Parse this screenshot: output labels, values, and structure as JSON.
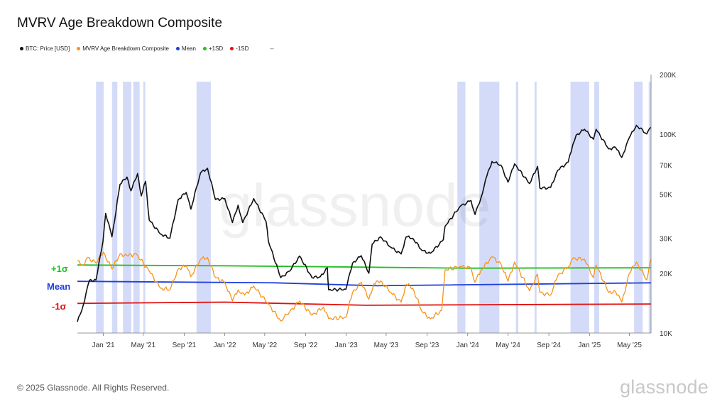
{
  "title": "MVRV Age Breakdown Composite",
  "legend": [
    {
      "label": "BTC: Price [USD]",
      "color": "#111111"
    },
    {
      "label": "MVRV Age Breakdown Composite",
      "color": "#f7931a"
    },
    {
      "label": "Mean",
      "color": "#1f3fe0"
    },
    {
      "label": "+1SD",
      "color": "#20c020"
    },
    {
      "label": "-1SD",
      "color": "#e01010"
    },
    {
      "label": "--",
      "color": ""
    }
  ],
  "band_labels": {
    "plus": "+1σ",
    "mean": "Mean",
    "minus": "-1σ"
  },
  "footer": {
    "copyright": "© 2025 Glassnode. All Rights Reserved.",
    "brand": "glassnode",
    "watermark": "glassnode"
  },
  "chart_data": {
    "type": "line",
    "x_ticks": [
      "Jan '21",
      "May '21",
      "Sep '21",
      "Jan '22",
      "May '22",
      "Sep '22",
      "Jan '23",
      "May '23",
      "Sep '23",
      "Jan '24",
      "May '24",
      "Sep '24",
      "Jan '25",
      "May '25"
    ],
    "y_ticks": [
      "200K",
      "100K",
      "70K",
      "50K",
      "30K",
      "20K",
      "10K"
    ],
    "y_scale": "log",
    "ylim": [
      10000,
      200000
    ],
    "xlim": [
      "2020-10-15",
      "2025-07-05"
    ],
    "series": [
      {
        "name": "BTC: Price [USD]",
        "color": "#111111",
        "points": [
          [
            "2020-10-15",
            11400
          ],
          [
            "2020-11-01",
            13700
          ],
          [
            "2020-11-20",
            18400
          ],
          [
            "2020-12-10",
            18500
          ],
          [
            "2020-12-31",
            29000
          ],
          [
            "2021-01-08",
            40000
          ],
          [
            "2021-01-27",
            30500
          ],
          [
            "2021-02-20",
            56000
          ],
          [
            "2021-03-13",
            61000
          ],
          [
            "2021-03-25",
            52000
          ],
          [
            "2021-04-14",
            63500
          ],
          [
            "2021-04-25",
            49000
          ],
          [
            "2021-05-08",
            58000
          ],
          [
            "2021-05-19",
            37000
          ],
          [
            "2021-06-22",
            31500
          ],
          [
            "2021-07-20",
            30000
          ],
          [
            "2021-08-14",
            47000
          ],
          [
            "2021-09-07",
            51000
          ],
          [
            "2021-09-21",
            42000
          ],
          [
            "2021-10-20",
            64000
          ],
          [
            "2021-11-10",
            67500
          ],
          [
            "2021-12-04",
            47000
          ],
          [
            "2022-01-01",
            47500
          ],
          [
            "2022-01-24",
            36000
          ],
          [
            "2022-02-10",
            44000
          ],
          [
            "2022-02-24",
            36000
          ],
          [
            "2022-03-29",
            47500
          ],
          [
            "2022-05-05",
            36500
          ],
          [
            "2022-05-12",
            29000
          ],
          [
            "2022-06-18",
            19000
          ],
          [
            "2022-07-15",
            20500
          ],
          [
            "2022-08-14",
            24400
          ],
          [
            "2022-09-20",
            19000
          ],
          [
            "2022-10-15",
            19200
          ],
          [
            "2022-11-05",
            21300
          ],
          [
            "2022-11-09",
            16500
          ],
          [
            "2022-12-31",
            16600
          ],
          [
            "2023-01-20",
            22500
          ],
          [
            "2023-02-15",
            24500
          ],
          [
            "2023-03-10",
            20000
          ],
          [
            "2023-03-20",
            28000
          ],
          [
            "2023-04-14",
            30500
          ],
          [
            "2023-05-15",
            27000
          ],
          [
            "2023-06-15",
            25000
          ],
          [
            "2023-06-30",
            30500
          ],
          [
            "2023-07-20",
            30000
          ],
          [
            "2023-08-17",
            26000
          ],
          [
            "2023-09-11",
            25200
          ],
          [
            "2023-10-20",
            29500
          ],
          [
            "2023-10-25",
            34500
          ],
          [
            "2023-12-10",
            43500
          ],
          [
            "2024-01-11",
            46500
          ],
          [
            "2024-01-23",
            39500
          ],
          [
            "2024-02-10",
            48000
          ],
          [
            "2024-02-28",
            62000
          ],
          [
            "2024-03-14",
            73000
          ],
          [
            "2024-04-10",
            70000
          ],
          [
            "2024-05-01",
            57500
          ],
          [
            "2024-05-21",
            71000
          ],
          [
            "2024-07-05",
            56500
          ],
          [
            "2024-07-29",
            69000
          ],
          [
            "2024-08-05",
            53500
          ],
          [
            "2024-09-06",
            54000
          ],
          [
            "2024-09-28",
            66000
          ],
          [
            "2024-10-29",
            72500
          ],
          [
            "2024-11-12",
            89000
          ],
          [
            "2024-11-22",
            99000
          ],
          [
            "2024-12-17",
            106000
          ],
          [
            "2025-01-13",
            94500
          ],
          [
            "2025-01-21",
            106000
          ],
          [
            "2025-02-28",
            84500
          ],
          [
            "2025-03-20",
            86000
          ],
          [
            "2025-04-08",
            76500
          ],
          [
            "2025-05-01",
            96500
          ],
          [
            "2025-05-22",
            111000
          ],
          [
            "2025-06-22",
            100500
          ],
          [
            "2025-07-05",
            108500
          ]
        ]
      },
      {
        "name": "MVRV Age Breakdown Composite",
        "color": "#f7931a",
        "points": [
          [
            "2020-10-15",
            23000
          ],
          [
            "2020-11-01",
            22000
          ],
          [
            "2020-11-15",
            24000
          ],
          [
            "2020-12-10",
            22500
          ],
          [
            "2021-01-01",
            25500
          ],
          [
            "2021-01-27",
            21000
          ],
          [
            "2021-02-20",
            25000
          ],
          [
            "2021-03-13",
            24500
          ],
          [
            "2021-04-10",
            25000
          ],
          [
            "2021-05-19",
            20500
          ],
          [
            "2021-06-22",
            16800
          ],
          [
            "2021-07-20",
            16500
          ],
          [
            "2021-08-14",
            21000
          ],
          [
            "2021-09-07",
            21800
          ],
          [
            "2021-09-21",
            19200
          ],
          [
            "2021-10-20",
            23500
          ],
          [
            "2021-11-10",
            24000
          ],
          [
            "2021-12-04",
            19000
          ],
          [
            "2022-01-01",
            18000
          ],
          [
            "2022-01-24",
            14500
          ],
          [
            "2022-02-10",
            16500
          ],
          [
            "2022-03-01",
            15500
          ],
          [
            "2022-03-29",
            17200
          ],
          [
            "2022-05-12",
            14000
          ],
          [
            "2022-06-18",
            11500
          ],
          [
            "2022-07-15",
            12800
          ],
          [
            "2022-08-14",
            14500
          ],
          [
            "2022-09-20",
            12300
          ],
          [
            "2022-10-25",
            13500
          ],
          [
            "2022-11-09",
            11800
          ],
          [
            "2022-12-31",
            12000
          ],
          [
            "2023-01-20",
            16000
          ],
          [
            "2023-02-15",
            18000
          ],
          [
            "2023-03-10",
            14800
          ],
          [
            "2023-03-25",
            17700
          ],
          [
            "2023-04-14",
            18300
          ],
          [
            "2023-05-15",
            16000
          ],
          [
            "2023-06-15",
            14300
          ],
          [
            "2023-06-30",
            17600
          ],
          [
            "2023-07-20",
            16800
          ],
          [
            "2023-08-17",
            12800
          ],
          [
            "2023-09-11",
            11800
          ],
          [
            "2023-10-15",
            13000
          ],
          [
            "2023-10-25",
            20800
          ],
          [
            "2023-12-10",
            21600
          ],
          [
            "2024-01-11",
            21300
          ],
          [
            "2024-01-23",
            18000
          ],
          [
            "2024-02-10",
            20700
          ],
          [
            "2024-03-14",
            24200
          ],
          [
            "2024-04-10",
            22300
          ],
          [
            "2024-05-01",
            18200
          ],
          [
            "2024-05-21",
            22800
          ],
          [
            "2024-07-05",
            16300
          ],
          [
            "2024-07-29",
            19800
          ],
          [
            "2024-08-05",
            16000
          ],
          [
            "2024-09-06",
            15500
          ],
          [
            "2024-09-28",
            19500
          ],
          [
            "2024-10-29",
            21500
          ],
          [
            "2024-11-12",
            23800
          ],
          [
            "2024-12-17",
            23500
          ],
          [
            "2025-01-13",
            19000
          ],
          [
            "2025-01-21",
            22000
          ],
          [
            "2025-02-28",
            16000
          ],
          [
            "2025-03-20",
            16200
          ],
          [
            "2025-04-08",
            14300
          ],
          [
            "2025-05-01",
            20000
          ],
          [
            "2025-05-22",
            22800
          ],
          [
            "2025-06-22",
            18500
          ],
          [
            "2025-07-05",
            23500
          ]
        ]
      },
      {
        "name": "Mean",
        "color": "#1f3fe0",
        "points": [
          [
            "2020-10-15",
            18200
          ],
          [
            "2022-06-01",
            17900
          ],
          [
            "2023-04-01",
            17300
          ],
          [
            "2025-07-05",
            17900
          ]
        ]
      },
      {
        "name": "+1SD",
        "color": "#20c020",
        "points": [
          [
            "2020-10-15",
            22000
          ],
          [
            "2022-01-01",
            21800
          ],
          [
            "2024-01-01",
            21200
          ],
          [
            "2025-07-05",
            21300
          ]
        ]
      },
      {
        "name": "-1SD",
        "color": "#e01010",
        "points": [
          [
            "2020-10-15",
            14100
          ],
          [
            "2022-01-01",
            14300
          ],
          [
            "2023-03-01",
            13800
          ],
          [
            "2025-07-05",
            14000
          ]
        ]
      }
    ],
    "highlight_ranges": [
      [
        "2020-12-10",
        "2021-01-02"
      ],
      [
        "2021-01-27",
        "2021-02-12"
      ],
      [
        "2021-03-01",
        "2021-03-26"
      ],
      [
        "2021-04-01",
        "2021-04-20"
      ],
      [
        "2021-05-01",
        "2021-05-07"
      ],
      [
        "2021-10-08",
        "2021-11-20"
      ],
      [
        "2023-12-01",
        "2023-12-25"
      ],
      [
        "2024-02-05",
        "2024-04-05"
      ],
      [
        "2024-05-25",
        "2024-06-01"
      ],
      [
        "2024-07-20",
        "2024-07-26"
      ],
      [
        "2024-11-05",
        "2024-12-31"
      ],
      [
        "2025-01-15",
        "2025-01-30"
      ],
      [
        "2025-05-15",
        "2025-06-10"
      ],
      [
        "2025-06-28",
        "2025-07-05"
      ]
    ],
    "grid": false,
    "legend_position": "top-left"
  }
}
